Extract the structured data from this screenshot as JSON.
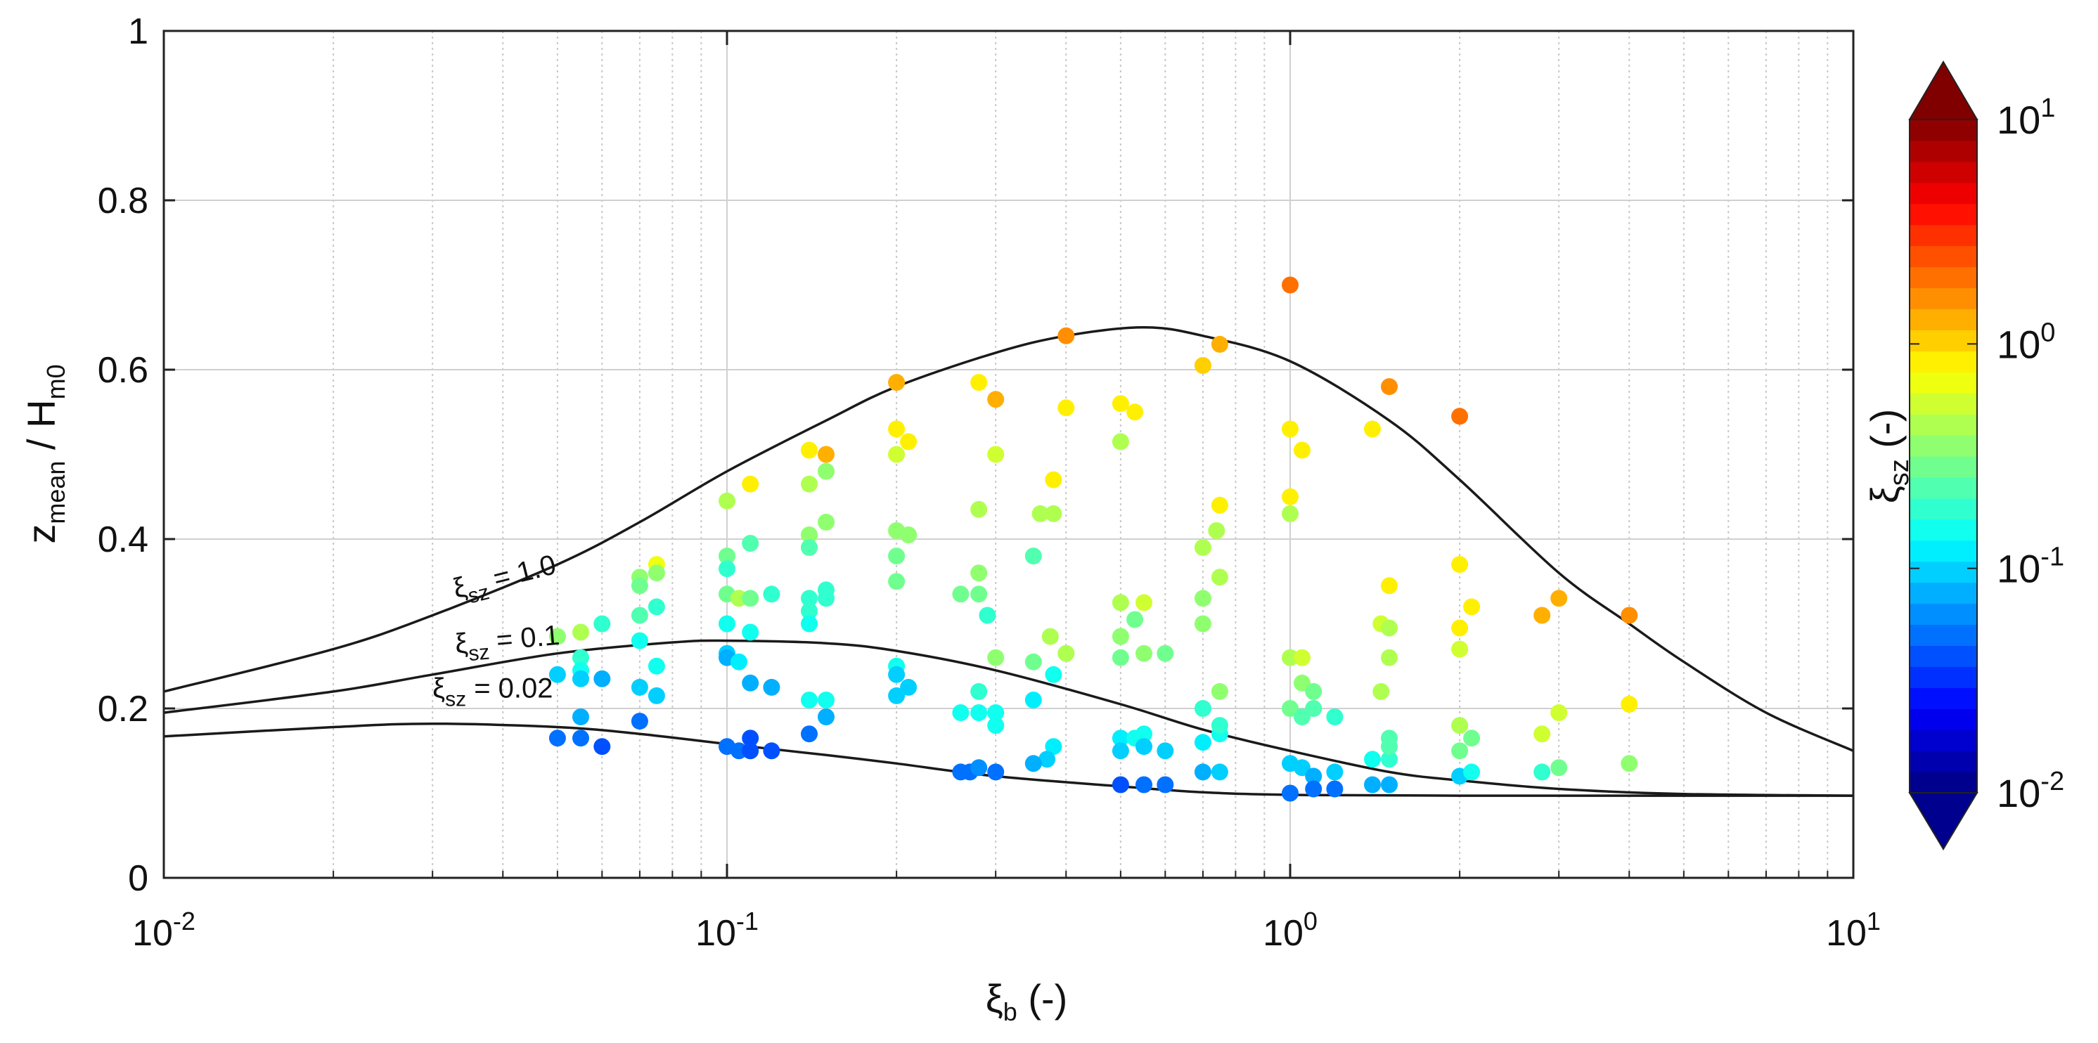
{
  "chart_data": {
    "type": "scatter",
    "xscale": "log",
    "xlim": [
      0.01,
      10
    ],
    "ylim": [
      0,
      1
    ],
    "grid": true,
    "xlabel": {
      "greek": "ξ",
      "sub": "b",
      "unit": "(-)"
    },
    "ylabel": {
      "main": "z",
      "sub1": "mean",
      "mid": " / H",
      "sub2": "m0"
    },
    "y_ticks": [
      {
        "v": 0,
        "label": "0"
      },
      {
        "v": 0.2,
        "label": "0.2"
      },
      {
        "v": 0.4,
        "label": "0.4"
      },
      {
        "v": 0.6,
        "label": "0.6"
      },
      {
        "v": 0.8,
        "label": "0.8"
      },
      {
        "v": 1,
        "label": "1"
      }
    ],
    "x_ticks": [
      {
        "v": 0.01,
        "base": "10",
        "exp": "-2"
      },
      {
        "v": 0.1,
        "base": "10",
        "exp": "-1"
      },
      {
        "v": 1,
        "base": "10",
        "exp": "0"
      },
      {
        "v": 10,
        "base": "10",
        "exp": "1"
      }
    ],
    "curves": [
      {
        "name": "ξsz = 1.0",
        "label_greek": "ξ",
        "label_sub": "sz",
        "label_value": "= 1.0",
        "label_at": [
          0.033,
          0.33
        ],
        "label_rotation_deg": -14,
        "points": [
          [
            0.01,
            0.22
          ],
          [
            0.02,
            0.27
          ],
          [
            0.03,
            0.31
          ],
          [
            0.05,
            0.37
          ],
          [
            0.07,
            0.42
          ],
          [
            0.1,
            0.48
          ],
          [
            0.15,
            0.54
          ],
          [
            0.2,
            0.58
          ],
          [
            0.3,
            0.62
          ],
          [
            0.4,
            0.64
          ],
          [
            0.55,
            0.65
          ],
          [
            0.7,
            0.64
          ],
          [
            1.0,
            0.61
          ],
          [
            1.5,
            0.54
          ],
          [
            2.0,
            0.47
          ],
          [
            3.0,
            0.36
          ],
          [
            4.0,
            0.3
          ],
          [
            5.0,
            0.255
          ],
          [
            7.0,
            0.195
          ],
          [
            10.0,
            0.15
          ]
        ]
      },
      {
        "name": "ξsz = 0.1",
        "label_greek": "ξ",
        "label_sub": "sz",
        "label_value": "= 0.1",
        "label_at": [
          0.033,
          0.265
        ],
        "label_rotation_deg": -5,
        "points": [
          [
            0.01,
            0.195
          ],
          [
            0.02,
            0.22
          ],
          [
            0.03,
            0.24
          ],
          [
            0.05,
            0.265
          ],
          [
            0.08,
            0.278
          ],
          [
            0.1,
            0.28
          ],
          [
            0.15,
            0.277
          ],
          [
            0.2,
            0.268
          ],
          [
            0.3,
            0.245
          ],
          [
            0.5,
            0.205
          ],
          [
            0.7,
            0.175
          ],
          [
            1.0,
            0.15
          ],
          [
            1.5,
            0.125
          ],
          [
            2.0,
            0.115
          ],
          [
            3.0,
            0.105
          ],
          [
            5.0,
            0.099
          ],
          [
            10.0,
            0.097
          ]
        ]
      },
      {
        "name": "ξsz = 0.02",
        "label_greek": "ξ",
        "label_sub": "sz",
        "label_value": "= 0.02",
        "label_at": [
          0.03,
          0.213
        ],
        "label_rotation_deg": 0,
        "points": [
          [
            0.01,
            0.167
          ],
          [
            0.02,
            0.178
          ],
          [
            0.03,
            0.182
          ],
          [
            0.05,
            0.178
          ],
          [
            0.07,
            0.17
          ],
          [
            0.1,
            0.158
          ],
          [
            0.15,
            0.145
          ],
          [
            0.2,
            0.135
          ],
          [
            0.3,
            0.12
          ],
          [
            0.5,
            0.108
          ],
          [
            0.7,
            0.101
          ],
          [
            1.0,
            0.098
          ],
          [
            2.0,
            0.097
          ],
          [
            10.0,
            0.097
          ]
        ]
      }
    ],
    "points": [
      [
        1.0,
        0.7,
        1.8
      ],
      [
        0.4,
        0.64,
        1.5
      ],
      [
        0.75,
        0.63,
        1.4
      ],
      [
        0.2,
        0.585,
        1.3
      ],
      [
        1.5,
        0.58,
        1.5
      ],
      [
        2.0,
        0.545,
        1.8
      ],
      [
        0.28,
        0.585,
        0.9
      ],
      [
        0.3,
        0.565,
        1.2
      ],
      [
        0.7,
        0.605,
        1.0
      ],
      [
        0.5,
        0.56,
        0.9
      ],
      [
        0.53,
        0.55,
        0.8
      ],
      [
        0.4,
        0.555,
        0.75
      ],
      [
        0.15,
        0.5,
        1.3
      ],
      [
        0.14,
        0.505,
        0.9
      ],
      [
        1.0,
        0.53,
        0.8
      ],
      [
        1.05,
        0.505,
        0.85
      ],
      [
        1.4,
        0.53,
        0.9
      ],
      [
        0.2,
        0.53,
        0.8
      ],
      [
        0.21,
        0.515,
        0.75
      ],
      [
        0.11,
        0.465,
        0.9
      ],
      [
        0.1,
        0.445,
        0.45
      ],
      [
        0.38,
        0.47,
        0.8
      ],
      [
        0.5,
        0.515,
        0.4
      ],
      [
        0.3,
        0.5,
        0.5
      ],
      [
        0.2,
        0.5,
        0.6
      ],
      [
        0.14,
        0.465,
        0.4
      ],
      [
        0.15,
        0.48,
        0.35
      ],
      [
        0.75,
        0.44,
        0.8
      ],
      [
        1.0,
        0.45,
        0.8
      ],
      [
        1.0,
        0.43,
        0.45
      ],
      [
        0.28,
        0.435,
        0.4
      ],
      [
        0.36,
        0.43,
        0.45
      ],
      [
        0.38,
        0.43,
        0.4
      ],
      [
        0.74,
        0.41,
        0.45
      ],
      [
        0.7,
        0.39,
        0.4
      ],
      [
        0.15,
        0.42,
        0.35
      ],
      [
        0.14,
        0.405,
        0.35
      ],
      [
        0.2,
        0.41,
        0.35
      ],
      [
        0.21,
        0.405,
        0.35
      ],
      [
        0.1,
        0.38,
        0.3
      ],
      [
        0.11,
        0.395,
        0.25
      ],
      [
        0.14,
        0.39,
        0.25
      ],
      [
        0.2,
        0.38,
        0.3
      ],
      [
        0.075,
        0.37,
        0.7
      ],
      [
        0.075,
        0.36,
        0.35
      ],
      [
        0.07,
        0.355,
        0.35
      ],
      [
        0.07,
        0.345,
        0.3
      ],
      [
        0.35,
        0.38,
        0.25
      ],
      [
        2.0,
        0.37,
        0.8
      ],
      [
        0.75,
        0.355,
        0.4
      ],
      [
        0.1,
        0.365,
        0.2
      ],
      [
        0.2,
        0.35,
        0.3
      ],
      [
        0.1,
        0.335,
        0.3
      ],
      [
        0.105,
        0.33,
        0.4
      ],
      [
        0.11,
        0.33,
        0.3
      ],
      [
        0.12,
        0.335,
        0.2
      ],
      [
        0.14,
        0.33,
        0.2
      ],
      [
        0.15,
        0.34,
        0.2
      ],
      [
        0.15,
        0.33,
        0.2
      ],
      [
        0.26,
        0.335,
        0.3
      ],
      [
        0.28,
        0.335,
        0.3
      ],
      [
        0.28,
        0.36,
        0.35
      ],
      [
        0.7,
        0.33,
        0.35
      ],
      [
        0.5,
        0.325,
        0.4
      ],
      [
        0.55,
        0.325,
        0.5
      ],
      [
        1.5,
        0.345,
        0.75
      ],
      [
        2.1,
        0.32,
        0.8
      ],
      [
        2.8,
        0.31,
        1.2
      ],
      [
        3.0,
        0.33,
        1.4
      ],
      [
        4.0,
        0.31,
        1.6
      ],
      [
        0.075,
        0.32,
        0.2
      ],
      [
        0.07,
        0.31,
        0.25
      ],
      [
        0.14,
        0.315,
        0.2
      ],
      [
        0.14,
        0.3,
        0.15
      ],
      [
        0.1,
        0.3,
        0.15
      ],
      [
        0.11,
        0.29,
        0.15
      ],
      [
        0.29,
        0.31,
        0.2
      ],
      [
        0.5,
        0.285,
        0.35
      ],
      [
        0.53,
        0.305,
        0.3
      ],
      [
        0.7,
        0.3,
        0.35
      ],
      [
        0.375,
        0.285,
        0.4
      ],
      [
        1.45,
        0.3,
        0.6
      ],
      [
        1.5,
        0.295,
        0.45
      ],
      [
        2.0,
        0.295,
        0.8
      ],
      [
        2.0,
        0.27,
        0.5
      ],
      [
        0.06,
        0.3,
        0.2
      ],
      [
        0.055,
        0.29,
        0.4
      ],
      [
        0.05,
        0.285,
        0.35
      ],
      [
        0.07,
        0.28,
        0.15
      ],
      [
        0.075,
        0.25,
        0.15
      ],
      [
        0.055,
        0.26,
        0.2
      ],
      [
        0.055,
        0.245,
        0.15
      ],
      [
        0.5,
        0.26,
        0.3
      ],
      [
        0.55,
        0.265,
        0.35
      ],
      [
        0.6,
        0.265,
        0.3
      ],
      [
        0.3,
        0.26,
        0.35
      ],
      [
        0.4,
        0.265,
        0.4
      ],
      [
        0.35,
        0.255,
        0.3
      ],
      [
        1.0,
        0.26,
        0.45
      ],
      [
        1.05,
        0.26,
        0.5
      ],
      [
        1.5,
        0.26,
        0.45
      ],
      [
        0.1,
        0.265,
        0.1
      ],
      [
        0.1,
        0.26,
        0.08
      ],
      [
        0.105,
        0.255,
        0.12
      ],
      [
        0.38,
        0.24,
        0.15
      ],
      [
        0.2,
        0.25,
        0.15
      ],
      [
        0.2,
        0.24,
        0.1
      ],
      [
        0.05,
        0.24,
        0.1
      ],
      [
        0.055,
        0.235,
        0.1
      ],
      [
        0.06,
        0.235,
        0.08
      ],
      [
        0.11,
        0.23,
        0.07
      ],
      [
        0.12,
        0.225,
        0.07
      ],
      [
        1.05,
        0.23,
        0.35
      ],
      [
        1.1,
        0.22,
        0.3
      ],
      [
        1.45,
        0.22,
        0.4
      ],
      [
        0.7,
        0.2,
        0.2
      ],
      [
        0.75,
        0.22,
        0.35
      ],
      [
        1.0,
        0.2,
        0.3
      ],
      [
        1.05,
        0.19,
        0.25
      ],
      [
        1.1,
        0.2,
        0.25
      ],
      [
        1.2,
        0.19,
        0.2
      ],
      [
        0.07,
        0.225,
        0.09
      ],
      [
        0.075,
        0.215,
        0.1
      ],
      [
        0.2,
        0.215,
        0.09
      ],
      [
        0.21,
        0.225,
        0.1
      ],
      [
        0.14,
        0.21,
        0.15
      ],
      [
        0.15,
        0.21,
        0.15
      ],
      [
        0.26,
        0.195,
        0.15
      ],
      [
        0.28,
        0.195,
        0.15
      ],
      [
        0.3,
        0.195,
        0.15
      ],
      [
        0.35,
        0.21,
        0.12
      ],
      [
        0.28,
        0.22,
        0.2
      ],
      [
        0.3,
        0.18,
        0.15
      ],
      [
        0.05,
        0.165,
        0.05
      ],
      [
        0.055,
        0.165,
        0.05
      ],
      [
        0.06,
        0.155,
        0.04
      ],
      [
        0.055,
        0.19,
        0.07
      ],
      [
        0.07,
        0.185,
        0.05
      ],
      [
        0.1,
        0.155,
        0.05
      ],
      [
        0.105,
        0.15,
        0.05
      ],
      [
        0.11,
        0.165,
        0.04
      ],
      [
        0.11,
        0.15,
        0.04
      ],
      [
        0.12,
        0.15,
        0.04
      ],
      [
        0.14,
        0.17,
        0.05
      ],
      [
        0.15,
        0.19,
        0.08
      ],
      [
        0.5,
        0.165,
        0.12
      ],
      [
        0.53,
        0.165,
        0.15
      ],
      [
        0.55,
        0.17,
        0.15
      ],
      [
        0.5,
        0.15,
        0.1
      ],
      [
        0.55,
        0.155,
        0.1
      ],
      [
        0.6,
        0.15,
        0.1
      ],
      [
        0.38,
        0.155,
        0.12
      ],
      [
        0.37,
        0.14,
        0.1
      ],
      [
        0.35,
        0.135,
        0.07
      ],
      [
        0.26,
        0.125,
        0.05
      ],
      [
        0.27,
        0.125,
        0.05
      ],
      [
        0.28,
        0.13,
        0.06
      ],
      [
        0.3,
        0.125,
        0.05
      ],
      [
        0.7,
        0.16,
        0.12
      ],
      [
        0.7,
        0.125,
        0.08
      ],
      [
        0.75,
        0.125,
        0.1
      ],
      [
        0.75,
        0.17,
        0.15
      ],
      [
        0.75,
        0.18,
        0.2
      ],
      [
        1.0,
        0.135,
        0.1
      ],
      [
        1.05,
        0.13,
        0.1
      ],
      [
        1.1,
        0.12,
        0.08
      ],
      [
        1.2,
        0.125,
        0.1
      ],
      [
        1.0,
        0.1,
        0.05
      ],
      [
        1.1,
        0.105,
        0.05
      ],
      [
        1.2,
        0.105,
        0.05
      ],
      [
        0.5,
        0.11,
        0.04
      ],
      [
        0.55,
        0.11,
        0.05
      ],
      [
        0.6,
        0.11,
        0.05
      ],
      [
        1.4,
        0.11,
        0.07
      ],
      [
        1.5,
        0.11,
        0.08
      ],
      [
        1.4,
        0.14,
        0.15
      ],
      [
        1.5,
        0.14,
        0.2
      ],
      [
        1.5,
        0.155,
        0.25
      ],
      [
        1.5,
        0.165,
        0.25
      ],
      [
        2.0,
        0.15,
        0.3
      ],
      [
        2.0,
        0.18,
        0.4
      ],
      [
        2.1,
        0.165,
        0.3
      ],
      [
        2.0,
        0.12,
        0.1
      ],
      [
        2.1,
        0.125,
        0.15
      ],
      [
        2.8,
        0.17,
        0.5
      ],
      [
        2.8,
        0.125,
        0.2
      ],
      [
        3.0,
        0.195,
        0.6
      ],
      [
        3.0,
        0.13,
        0.3
      ],
      [
        4.0,
        0.205,
        0.8
      ],
      [
        4.0,
        0.135,
        0.35
      ]
    ],
    "colorbar": {
      "label": {
        "greek": "ξ",
        "sub": "sz",
        "unit": "(-)"
      },
      "scale": "log",
      "range": [
        0.01,
        10
      ],
      "extend": "both",
      "levels": 32,
      "ticks": [
        {
          "v": 0.01,
          "base": "10",
          "exp": "-2"
        },
        {
          "v": 0.1,
          "base": "10",
          "exp": "-1"
        },
        {
          "v": 1,
          "base": "10",
          "exp": "0"
        },
        {
          "v": 10,
          "base": "10",
          "exp": "1"
        }
      ]
    }
  }
}
